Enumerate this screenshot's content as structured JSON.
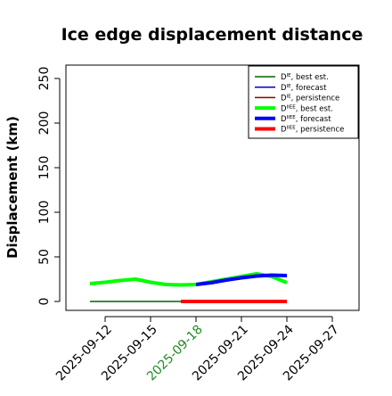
{
  "chart_data": {
    "type": "line",
    "title": "Ice edge displacement distance",
    "xlabel": "",
    "ylabel": "Displacement (km)",
    "ylim": [
      0,
      260
    ],
    "y_ticks": [
      0,
      50,
      100,
      150,
      200,
      250
    ],
    "xlim": [
      "2025-09-10",
      "2025-09-28"
    ],
    "x_ticks": [
      "2025-09-12",
      "2025-09-15",
      "2025-09-18",
      "2025-09-21",
      "2025-09-24",
      "2025-09-27"
    ],
    "highlighted_tick": "2025-09-18",
    "highlight_color": "#228b22",
    "grid": false,
    "legend_position": "top-right",
    "series": [
      {
        "name": "D^IE, best est.",
        "legend_base": "D",
        "legend_sup": "IE",
        "legend_rest": ", best est.",
        "color": "#006400",
        "width": 1.5,
        "points": [
          [
            "2025-09-11",
            0
          ],
          [
            "2025-09-17",
            0
          ]
        ]
      },
      {
        "name": "D^IE, forecast",
        "legend_base": "D",
        "legend_sup": "IE",
        "legend_rest": ", forecast",
        "color": "#0000cd",
        "width": 1.5,
        "points": []
      },
      {
        "name": "D^IE, persistence",
        "legend_base": "D",
        "legend_sup": "IE",
        "legend_rest": ", persistence",
        "color": "#8b0000",
        "width": 1.5,
        "points": [
          [
            "2025-09-17",
            0
          ],
          [
            "2025-09-24",
            0
          ]
        ]
      },
      {
        "name": "D^IIEE, best est.",
        "legend_base": "D",
        "legend_sup": "IIEE",
        "legend_rest": ", best est.",
        "color": "#00ff00",
        "width": 4,
        "points": [
          [
            "2025-09-11",
            20
          ],
          [
            "2025-09-12",
            21.5
          ],
          [
            "2025-09-13",
            23.5
          ],
          [
            "2025-09-14",
            25
          ],
          [
            "2025-09-15",
            21.5
          ],
          [
            "2025-09-16",
            19
          ],
          [
            "2025-09-17",
            18.5
          ],
          [
            "2025-09-18",
            19
          ],
          [
            "2025-09-22",
            31
          ],
          [
            "2025-09-23",
            28
          ],
          [
            "2025-09-24",
            21
          ]
        ]
      },
      {
        "name": "D^IIEE, forecast",
        "legend_base": "D",
        "legend_sup": "IIEE",
        "legend_rest": ", forecast",
        "color": "#0000ff",
        "width": 4,
        "points": [
          [
            "2025-09-18",
            19
          ],
          [
            "2025-09-19",
            21
          ],
          [
            "2025-09-20",
            24
          ],
          [
            "2025-09-21",
            26.5
          ],
          [
            "2025-09-22",
            28.5
          ],
          [
            "2025-09-23",
            29.5
          ],
          [
            "2025-09-24",
            29
          ]
        ]
      },
      {
        "name": "D^IIEE, persistence",
        "legend_base": "D",
        "legend_sup": "IIEE",
        "legend_rest": ", persistence",
        "color": "#ff0000",
        "width": 4,
        "points": [
          [
            "2025-09-17",
            0
          ],
          [
            "2025-09-24",
            0
          ]
        ]
      }
    ]
  }
}
